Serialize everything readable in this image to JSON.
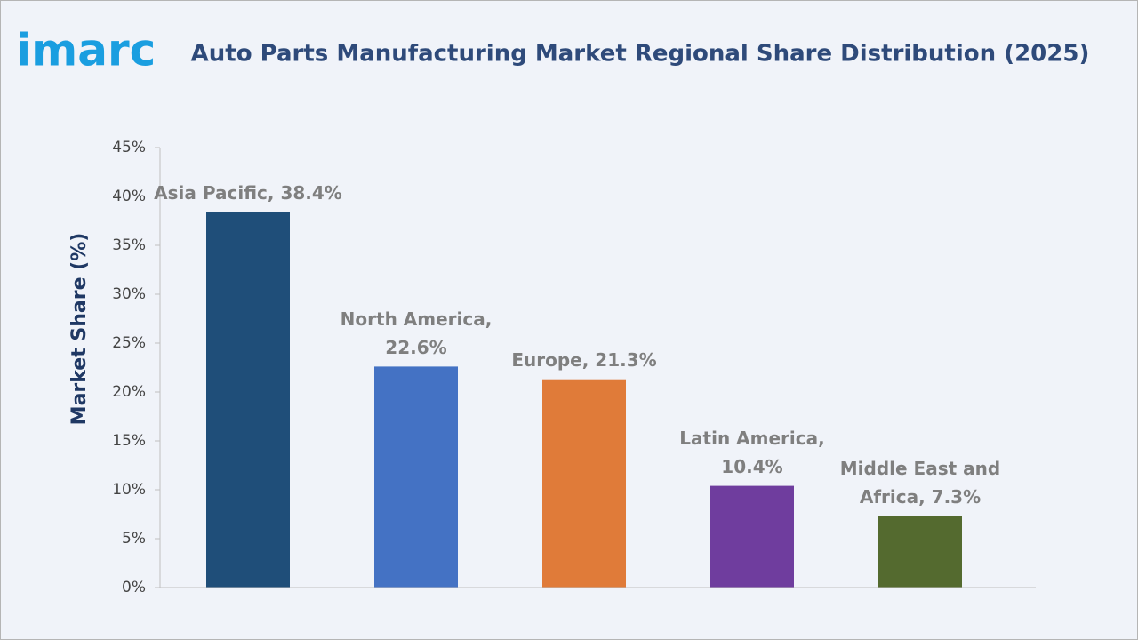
{
  "logo": "imarc",
  "chart_data": {
    "type": "bar",
    "title": "Auto Parts Manufacturing Market Regional Share Distribution (2025)",
    "y_label": "Market Share (%)",
    "values": [
      38.4,
      22.6,
      21.3,
      10.4,
      7.3
    ],
    "value_labels": [
      [
        "Asia Pacific, 38.4%"
      ],
      [
        "North America,",
        "22.6%"
      ],
      [
        "Europe, 21.3%"
      ],
      [
        "Latin America,",
        "10.4%"
      ],
      [
        "Middle East and",
        "Africa, 7.3%"
      ]
    ],
    "colors": [
      "#1f4e79",
      "#4472c4",
      "#e07b39",
      "#6f3d9e",
      "#546a2f"
    ],
    "ylim": [
      0,
      45
    ],
    "yticks": [
      {
        "value": 0,
        "label": "0%"
      },
      {
        "value": 5,
        "label": "5%"
      },
      {
        "value": 10,
        "label": "10%"
      },
      {
        "value": 15,
        "label": "15%"
      },
      {
        "value": 20,
        "label": "20%"
      },
      {
        "value": 25,
        "label": "25%"
      },
      {
        "value": 30,
        "label": "30%"
      },
      {
        "value": 35,
        "label": "35%"
      },
      {
        "value": 40,
        "label": "40%"
      },
      {
        "value": 45,
        "label": "45%"
      }
    ],
    "grid": false
  }
}
